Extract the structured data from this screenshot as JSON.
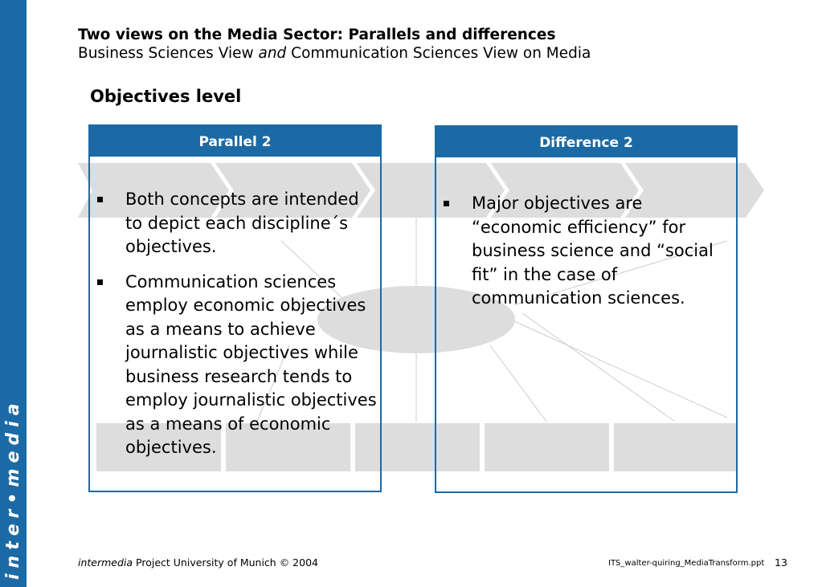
{
  "sidebar": {
    "brand": "inter•media",
    "color": "#1c6aa5"
  },
  "header": {
    "title": "Two views on the Media Sector: Parallels and differences",
    "subtitle_part1": "Business Sciences View ",
    "subtitle_italic": "and",
    "subtitle_part2": " Communication Sciences View on Media"
  },
  "section_heading": "Objectives level",
  "cards": [
    {
      "header": "Parallel 2",
      "bullets": [
        "Both concepts are intended to depict each discipline´s objectives.",
        "Communication sciences employ economic objectives as a means to achieve journalistic objectives while business research tends to employ journalistic objectives as a means of economic objectives."
      ]
    },
    {
      "header": "Difference 2",
      "bullets": [
        "Major objectives are “economic efficiency” for business science and “social fit” in the case of communication sciences."
      ]
    }
  ],
  "footer": {
    "brand_italic": "intermedia",
    "text": " Project University of Munich © 2004",
    "file": "ITS_walter-quiring_MediaTransform.ppt",
    "page_number": "13"
  },
  "colors": {
    "accent": "#1c6aa5",
    "diagram_gray": "#d9d9d9"
  }
}
